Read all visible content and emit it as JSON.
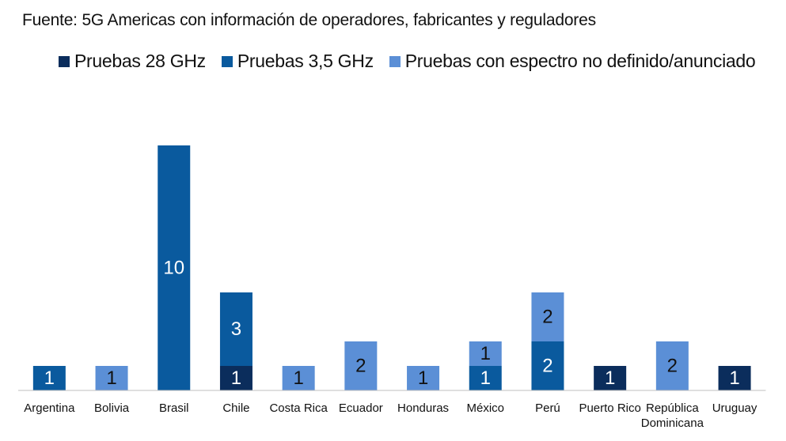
{
  "source_note": "Fuente: 5G Americas con información de operadores, fabricantes y reguladores",
  "colors": {
    "s28": "#0b2d5c",
    "s35": "#0a5a9e",
    "sund": "#5b8fd6",
    "axis": "#bfbfbf",
    "label_on_dark": "#ffffff",
    "label_on_light": "#111111"
  },
  "chart_data": {
    "type": "bar",
    "stacked": true,
    "title": "",
    "xlabel": "",
    "ylabel": "",
    "ylim": [
      0,
      10
    ],
    "legend_position": "top",
    "grid": false,
    "categories": [
      [
        "Argentina"
      ],
      [
        "Bolivia"
      ],
      [
        "Brasil"
      ],
      [
        "Chile"
      ],
      [
        "Costa Rica"
      ],
      [
        "Ecuador"
      ],
      [
        "Honduras"
      ],
      [
        "México"
      ],
      [
        "Perú"
      ],
      [
        "Puerto Rico"
      ],
      [
        "República",
        "Dominicana"
      ],
      [
        "Uruguay"
      ]
    ],
    "series": [
      {
        "name": "Pruebas 28 GHz",
        "color": "#0b2d5c",
        "values": [
          0,
          0,
          0,
          1,
          0,
          0,
          0,
          0,
          0,
          1,
          0,
          1
        ]
      },
      {
        "name": "Pruebas 3,5 GHz",
        "color": "#0a5a9e",
        "values": [
          1,
          0,
          10,
          3,
          0,
          0,
          0,
          1,
          2,
          0,
          0,
          0
        ]
      },
      {
        "name": "Pruebas con espectro no definido/anunciado",
        "color": "#5b8fd6",
        "values": [
          0,
          1,
          0,
          0,
          1,
          2,
          1,
          1,
          2,
          0,
          2,
          0
        ]
      }
    ]
  }
}
